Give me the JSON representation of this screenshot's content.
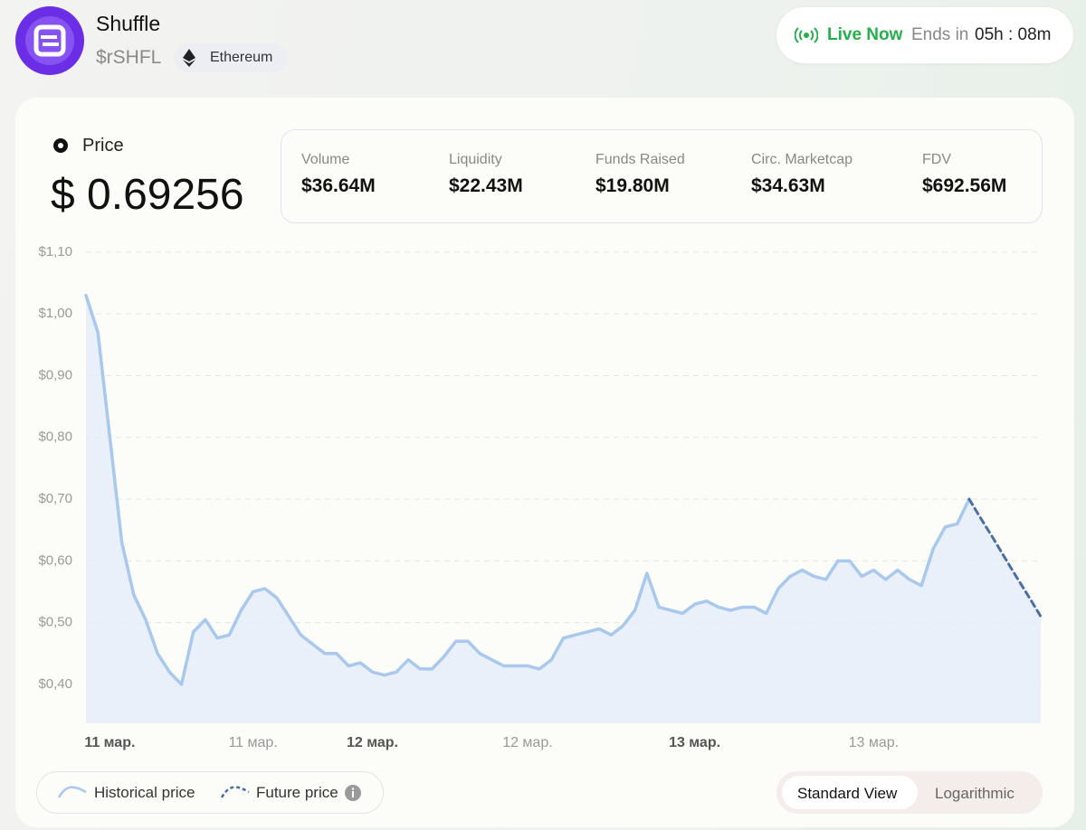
{
  "header": {
    "name": "Shuffle",
    "ticker": "$rSHFL",
    "chain": "Ethereum"
  },
  "status": {
    "live": "Live Now",
    "ends_label": "Ends in",
    "countdown": "05h : 08m"
  },
  "price": {
    "label": "Price",
    "value": "$ 0.69256"
  },
  "stats": [
    {
      "label": "Volume",
      "value": "$36.64M"
    },
    {
      "label": "Liquidity",
      "value": "$22.43M"
    },
    {
      "label": "Funds Raised",
      "value": "$19.80M"
    },
    {
      "label": "Circ. Marketcap",
      "value": "$34.63M"
    },
    {
      "label": "FDV",
      "value": "$692.56M"
    }
  ],
  "views": [
    "Standard View",
    "Logarithmic"
  ],
  "chart_data": {
    "type": "line",
    "categories": [
      null,
      null,
      "11 мар.",
      null,
      null,
      null,
      null,
      null,
      null,
      null,
      null,
      null,
      null,
      null,
      "11 мар.",
      null,
      null,
      null,
      null,
      null,
      null,
      null,
      null,
      null,
      "12 мар.",
      null,
      null,
      null,
      null,
      null,
      null,
      null,
      null,
      null,
      null,
      null,
      null,
      "12 мар.",
      null,
      null,
      null,
      null,
      null,
      null,
      null,
      null,
      null,
      null,
      null,
      null,
      null,
      "13 мар.",
      null,
      null,
      null,
      null,
      null,
      null,
      null,
      null,
      null,
      null,
      null,
      null,
      null,
      null,
      "13 мар.",
      null,
      null,
      null,
      null,
      null,
      null,
      null,
      null,
      null,
      null,
      null,
      null,
      null,
      null
    ],
    "series": [
      {
        "name": "Historical price",
        "color": "#a9c8ee",
        "values": [
          1.03,
          0.97,
          0.8,
          0.63,
          0.545,
          0.505,
          0.45,
          0.42,
          0.4,
          0.485,
          0.505,
          0.475,
          0.48,
          0.52,
          0.55,
          0.555,
          0.54,
          0.51,
          0.48,
          0.465,
          0.45,
          0.45,
          0.43,
          0.435,
          0.42,
          0.415,
          0.42,
          0.44,
          0.425,
          0.425,
          0.445,
          0.47,
          0.47,
          0.45,
          0.44,
          0.43,
          0.43,
          0.43,
          0.425,
          0.44,
          0.475,
          0.48,
          0.485,
          0.49,
          0.48,
          0.495,
          0.52,
          0.58,
          0.525,
          0.52,
          0.515,
          0.53,
          0.535,
          0.525,
          0.52,
          0.525,
          0.525,
          0.515,
          0.555,
          0.575,
          0.585,
          0.575,
          0.57,
          0.6,
          0.6,
          0.575,
          0.585,
          0.57,
          0.585,
          0.57,
          0.56,
          0.62,
          0.655,
          0.66,
          0.7,
          null,
          null,
          null,
          null,
          null,
          null
        ]
      },
      {
        "name": "Future price",
        "color": "#4a6fa5",
        "values": [
          null,
          null,
          null,
          null,
          null,
          null,
          null,
          null,
          null,
          null,
          null,
          null,
          null,
          null,
          null,
          null,
          null,
          null,
          null,
          null,
          null,
          null,
          null,
          null,
          null,
          null,
          null,
          null,
          null,
          null,
          null,
          null,
          null,
          null,
          null,
          null,
          null,
          null,
          null,
          null,
          null,
          null,
          null,
          null,
          null,
          null,
          null,
          null,
          null,
          null,
          null,
          null,
          null,
          null,
          null,
          null,
          null,
          null,
          null,
          null,
          null,
          null,
          null,
          null,
          null,
          null,
          null,
          null,
          null,
          null,
          null,
          null,
          null,
          null,
          0.7,
          0.668,
          0.637,
          0.605,
          0.573,
          0.542,
          0.51
        ]
      }
    ],
    "ylim": [
      0.337,
      1.113
    ],
    "yticks": [
      {
        "value": 0.4,
        "label": "$0,40"
      },
      {
        "value": 0.5,
        "label": "$0,50"
      },
      {
        "value": 0.6,
        "label": "$0,60"
      },
      {
        "value": 0.7,
        "label": "$0,70"
      },
      {
        "value": 0.8,
        "label": "$0,80"
      },
      {
        "value": 0.9,
        "label": "$0,90"
      },
      {
        "value": 1.0,
        "label": "$1,00"
      },
      {
        "value": 1.1,
        "label": "$1,10"
      }
    ],
    "grid": true
  }
}
